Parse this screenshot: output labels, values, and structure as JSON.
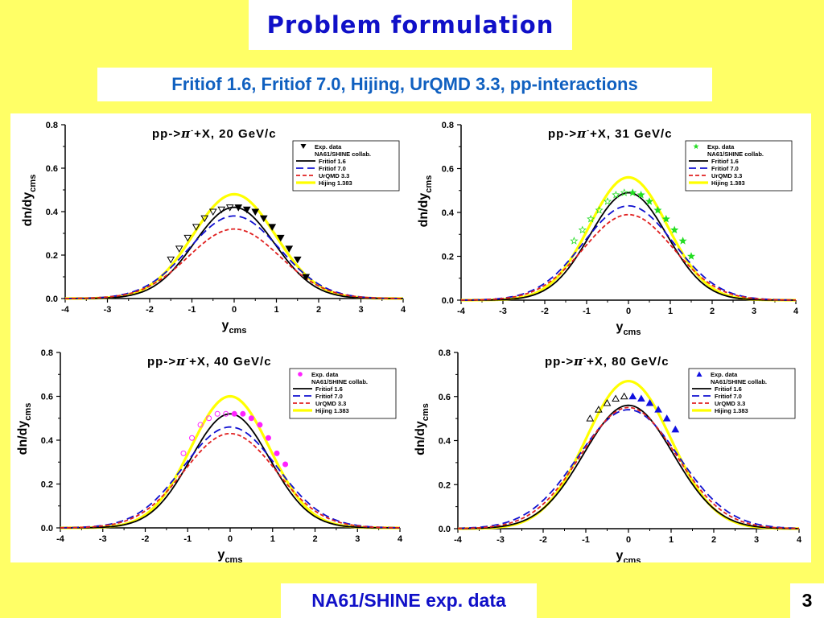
{
  "slide": {
    "title": "Problem formulation",
    "subtitle": "Fritiof 1.6, Fritiof 7.0, Hijing, UrQMD 3.3, pp-interactions",
    "footer": "NA61/SHINE exp. data",
    "page_number": "3"
  },
  "chart_data": [
    {
      "type": "line",
      "title_prefix": "pp->",
      "title_particle": "π",
      "title_charge": "-",
      "title_suffix": "+X, 20 GeV/c",
      "xlabel": "y",
      "xlabel_sub": "cms",
      "ylabel": "dn/dy",
      "ylabel_sub": "cms",
      "xlim": [
        -4,
        4
      ],
      "ylim": [
        0,
        0.8
      ],
      "xticks": [
        "-4",
        "-3",
        "-2",
        "-1",
        "0",
        "1",
        "2",
        "3",
        "4"
      ],
      "yticks": [
        "0.0",
        "0.2",
        "0.4",
        "0.6",
        "0.8"
      ],
      "legend_position": "top-right",
      "exp_marker": "triangle-down",
      "exp_color": "#000000",
      "series": [
        {
          "name": "Fritiof 1.6",
          "color": "#000000",
          "dash": "solid",
          "peak": 0.42,
          "sigma": 0.95
        },
        {
          "name": "Fritiof 7.0",
          "color": "#1010D0",
          "dash": "solid",
          "peak": 0.38,
          "sigma": 1.07
        },
        {
          "name": "UrQMD 3.3",
          "color": "#E02020",
          "dash": "solid",
          "peak": 0.32,
          "sigma": 1.08
        },
        {
          "name": "Hijing 1.383",
          "color": "#FFFF00",
          "dash": "solid",
          "peak": 0.48,
          "sigma": 0.98
        }
      ],
      "legend_labels": [
        "Exp. data",
        "NA61/SHINE collab.",
        "Fritiof 1.6",
        "Fritiof 7.0",
        "UrQMD 3.3",
        "Hijing 1.383"
      ],
      "exp_data": {
        "x": [
          0.1,
          0.3,
          0.5,
          0.7,
          0.9,
          1.1,
          1.3,
          1.5,
          1.7
        ],
        "y": [
          0.42,
          0.41,
          0.4,
          0.37,
          0.33,
          0.28,
          0.23,
          0.18,
          0.1
        ]
      },
      "exp_reflected": {
        "x": [
          -0.1,
          -0.3,
          -0.5,
          -0.7,
          -0.9,
          -1.1,
          -1.3,
          -1.5
        ],
        "y": [
          0.42,
          0.41,
          0.4,
          0.37,
          0.33,
          0.28,
          0.23,
          0.18
        ]
      }
    },
    {
      "type": "line",
      "title_prefix": "pp->",
      "title_particle": "π",
      "title_charge": "-",
      "title_suffix": "+X, 31 GeV/c",
      "xlabel": "y",
      "xlabel_sub": "cms",
      "ylabel": "dn/dy",
      "ylabel_sub": "cms",
      "xlim": [
        -4,
        4
      ],
      "ylim": [
        0,
        0.8
      ],
      "xticks": [
        "-4",
        "-3",
        "-2",
        "-1",
        "0",
        "1",
        "2",
        "3",
        "4"
      ],
      "yticks": [
        "0.0",
        "0.2",
        "0.4",
        "0.6",
        "0.8"
      ],
      "legend_position": "top-right",
      "exp_marker": "star",
      "exp_color": "#22DD22",
      "series": [
        {
          "name": "Fritiof 1.6",
          "color": "#000000",
          "dash": "solid",
          "peak": 0.49,
          "sigma": 0.92
        },
        {
          "name": "Fritiof 7.0",
          "color": "#1010D0",
          "dash": "solid",
          "peak": 0.43,
          "sigma": 1.08
        },
        {
          "name": "UrQMD 3.3",
          "color": "#E02020",
          "dash": "solid",
          "peak": 0.39,
          "sigma": 1.07
        },
        {
          "name": "Hijing 1.383",
          "color": "#FFFF00",
          "dash": "solid",
          "peak": 0.56,
          "sigma": 0.93
        }
      ],
      "legend_labels": [
        "Exp. data",
        "NA61/SHINE collab.",
        "Fritiof 1.6",
        "Fritiof 7.0",
        "UrQMD 3.3",
        "Hijing 1.383"
      ],
      "exp_data": {
        "x": [
          0.1,
          0.3,
          0.5,
          0.7,
          0.9,
          1.1,
          1.3,
          1.5
        ],
        "y": [
          0.49,
          0.48,
          0.45,
          0.41,
          0.37,
          0.32,
          0.27,
          0.2
        ]
      },
      "exp_reflected": {
        "x": [
          -0.1,
          -0.3,
          -0.5,
          -0.7,
          -0.9,
          -1.1,
          -1.3
        ],
        "y": [
          0.49,
          0.48,
          0.45,
          0.41,
          0.37,
          0.32,
          0.27
        ]
      }
    },
    {
      "type": "line",
      "title_prefix": "pp->",
      "title_particle": "π",
      "title_charge": "-",
      "title_suffix": "+X, 40 GeV/c",
      "xlabel": "y",
      "xlabel_sub": "cms",
      "ylabel": "dn/dy",
      "ylabel_sub": "cms",
      "xlim": [
        -4,
        4
      ],
      "ylim": [
        0,
        0.8
      ],
      "xticks": [
        "-4",
        "-3",
        "-2",
        "-1",
        "0",
        "1",
        "2",
        "3",
        "4"
      ],
      "yticks": [
        "0.0",
        "0.2",
        "0.4",
        "0.6",
        "0.8"
      ],
      "legend_position": "top-right",
      "exp_marker": "circle",
      "exp_color": "#FF22FF",
      "series": [
        {
          "name": "Fritiof 1.6",
          "color": "#000000",
          "dash": "solid",
          "peak": 0.52,
          "sigma": 0.93
        },
        {
          "name": "Fritiof 7.0",
          "color": "#1010D0",
          "dash": "solid",
          "peak": 0.46,
          "sigma": 1.1
        },
        {
          "name": "UrQMD 3.3",
          "color": "#E02020",
          "dash": "solid",
          "peak": 0.43,
          "sigma": 1.08
        },
        {
          "name": "Hijing 1.383",
          "color": "#FFFF00",
          "dash": "solid",
          "peak": 0.6,
          "sigma": 0.93
        }
      ],
      "legend_labels": [
        "Exp. data",
        "NA61/SHINE collab.",
        "Fritiof 1.6",
        "Fritiof 7.0",
        "UrQMD 3.3",
        "Hijing 1.383"
      ],
      "exp_data": {
        "x": [
          0.1,
          0.3,
          0.5,
          0.7,
          0.9,
          1.1,
          1.3
        ],
        "y": [
          0.52,
          0.52,
          0.5,
          0.47,
          0.41,
          0.34,
          0.29
        ]
      },
      "exp_reflected": {
        "x": [
          -0.1,
          -0.3,
          -0.5,
          -0.7,
          -0.9,
          -1.1
        ],
        "y": [
          0.52,
          0.52,
          0.5,
          0.47,
          0.41,
          0.34
        ]
      }
    },
    {
      "type": "line",
      "title_prefix": "pp->",
      "title_particle": "π",
      "title_charge": "-",
      "title_suffix": "+X, 80 GeV/c",
      "xlabel": "y",
      "xlabel_sub": "cms",
      "ylabel": "dn/dy",
      "ylabel_sub": "cms",
      "xlim": [
        -4,
        4
      ],
      "ylim": [
        0,
        0.8
      ],
      "xticks": [
        "-4",
        "-3",
        "-2",
        "-1",
        "0",
        "1",
        "2",
        "3",
        "4"
      ],
      "yticks": [
        "0.0",
        "0.2",
        "0.4",
        "0.6",
        "0.8"
      ],
      "legend_position": "top-right",
      "exp_marker": "triangle-up",
      "exp_color": "#1010E0",
      "series": [
        {
          "name": "Fritiof 1.6",
          "color": "#000000",
          "dash": "solid",
          "peak": 0.56,
          "sigma": 1.05
        },
        {
          "name": "Fritiof 7.0",
          "color": "#1010D0",
          "dash": "solid",
          "peak": 0.54,
          "sigma": 1.18
        },
        {
          "name": "UrQMD 3.3",
          "color": "#E02020",
          "dash": "solid",
          "peak": 0.55,
          "sigma": 1.12
        },
        {
          "name": "Hijing 1.383",
          "color": "#FFFF00",
          "dash": "solid",
          "peak": 0.67,
          "sigma": 1.0
        }
      ],
      "legend_labels": [
        "Exp. data",
        "NA61/SHINE collab.",
        "Fritiof 1.6",
        "Fritiof 7.0",
        "UrQMD 3.3",
        "Hijing 1.383"
      ],
      "exp_data": {
        "x": [
          0.1,
          0.3,
          0.5,
          0.7,
          0.9,
          1.1
        ],
        "y": [
          0.6,
          0.59,
          0.57,
          0.54,
          0.5,
          0.45
        ]
      },
      "exp_reflected": {
        "x": [
          -0.1,
          -0.3,
          -0.5,
          -0.7,
          -0.9
        ],
        "y": [
          0.6,
          0.59,
          0.57,
          0.54,
          0.5
        ]
      }
    }
  ]
}
